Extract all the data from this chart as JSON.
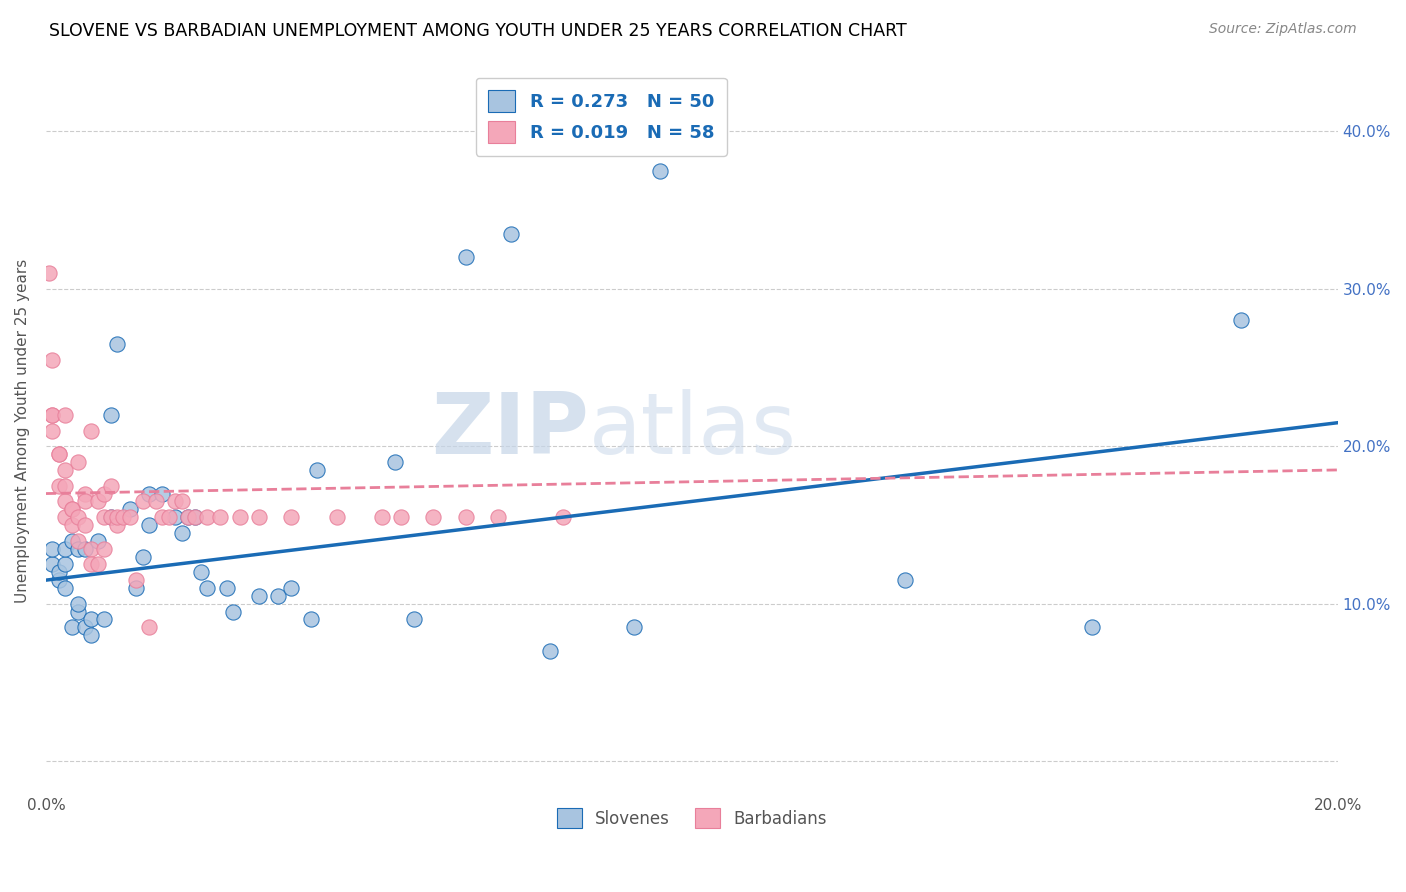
{
  "title": "SLOVENE VS BARBADIAN UNEMPLOYMENT AMONG YOUTH UNDER 25 YEARS CORRELATION CHART",
  "source": "Source: ZipAtlas.com",
  "ylabel": "Unemployment Among Youth under 25 years",
  "xlim": [
    0.0,
    0.2
  ],
  "ylim": [
    -0.02,
    0.44
  ],
  "legend_r_slovenes": "0.273",
  "legend_n_slovenes": "50",
  "legend_r_barbadians": "0.019",
  "legend_n_barbadians": "58",
  "slovenes_color": "#a8c4e0",
  "barbadians_color": "#f4a7b9",
  "trendline_slovenes_color": "#1a6bb5",
  "trendline_barbadians_color": "#e87f9a",
  "watermark_zip": "ZIP",
  "watermark_atlas": "atlas",
  "slovenes_x": [
    0.001,
    0.001,
    0.002,
    0.002,
    0.003,
    0.003,
    0.003,
    0.004,
    0.004,
    0.005,
    0.005,
    0.005,
    0.006,
    0.006,
    0.007,
    0.007,
    0.008,
    0.009,
    0.01,
    0.01,
    0.011,
    0.013,
    0.014,
    0.015,
    0.016,
    0.016,
    0.018,
    0.02,
    0.021,
    0.022,
    0.023,
    0.024,
    0.025,
    0.028,
    0.029,
    0.033,
    0.036,
    0.038,
    0.041,
    0.042,
    0.054,
    0.057,
    0.065,
    0.072,
    0.078,
    0.091,
    0.095,
    0.133,
    0.162,
    0.185
  ],
  "slovenes_y": [
    0.125,
    0.135,
    0.115,
    0.12,
    0.11,
    0.125,
    0.135,
    0.085,
    0.14,
    0.095,
    0.1,
    0.135,
    0.085,
    0.135,
    0.08,
    0.09,
    0.14,
    0.09,
    0.22,
    0.155,
    0.265,
    0.16,
    0.11,
    0.13,
    0.17,
    0.15,
    0.17,
    0.155,
    0.145,
    0.155,
    0.155,
    0.12,
    0.11,
    0.11,
    0.095,
    0.105,
    0.105,
    0.11,
    0.09,
    0.185,
    0.19,
    0.09,
    0.32,
    0.335,
    0.07,
    0.085,
    0.375,
    0.115,
    0.085,
    0.28
  ],
  "barbadians_x": [
    0.0005,
    0.001,
    0.001,
    0.001,
    0.001,
    0.002,
    0.002,
    0.002,
    0.003,
    0.003,
    0.003,
    0.003,
    0.003,
    0.004,
    0.004,
    0.004,
    0.005,
    0.005,
    0.005,
    0.006,
    0.006,
    0.006,
    0.007,
    0.007,
    0.007,
    0.008,
    0.008,
    0.009,
    0.009,
    0.009,
    0.01,
    0.01,
    0.011,
    0.011,
    0.012,
    0.013,
    0.014,
    0.015,
    0.016,
    0.017,
    0.018,
    0.019,
    0.02,
    0.021,
    0.022,
    0.023,
    0.025,
    0.027,
    0.03,
    0.033,
    0.038,
    0.045,
    0.052,
    0.055,
    0.06,
    0.065,
    0.07,
    0.08
  ],
  "barbadians_y": [
    0.31,
    0.255,
    0.22,
    0.21,
    0.22,
    0.195,
    0.195,
    0.175,
    0.175,
    0.22,
    0.165,
    0.155,
    0.185,
    0.16,
    0.15,
    0.16,
    0.19,
    0.14,
    0.155,
    0.17,
    0.165,
    0.15,
    0.21,
    0.135,
    0.125,
    0.125,
    0.165,
    0.155,
    0.135,
    0.17,
    0.175,
    0.155,
    0.15,
    0.155,
    0.155,
    0.155,
    0.115,
    0.165,
    0.085,
    0.165,
    0.155,
    0.155,
    0.165,
    0.165,
    0.155,
    0.155,
    0.155,
    0.155,
    0.155,
    0.155,
    0.155,
    0.155,
    0.155,
    0.155,
    0.155,
    0.155,
    0.155,
    0.155
  ]
}
